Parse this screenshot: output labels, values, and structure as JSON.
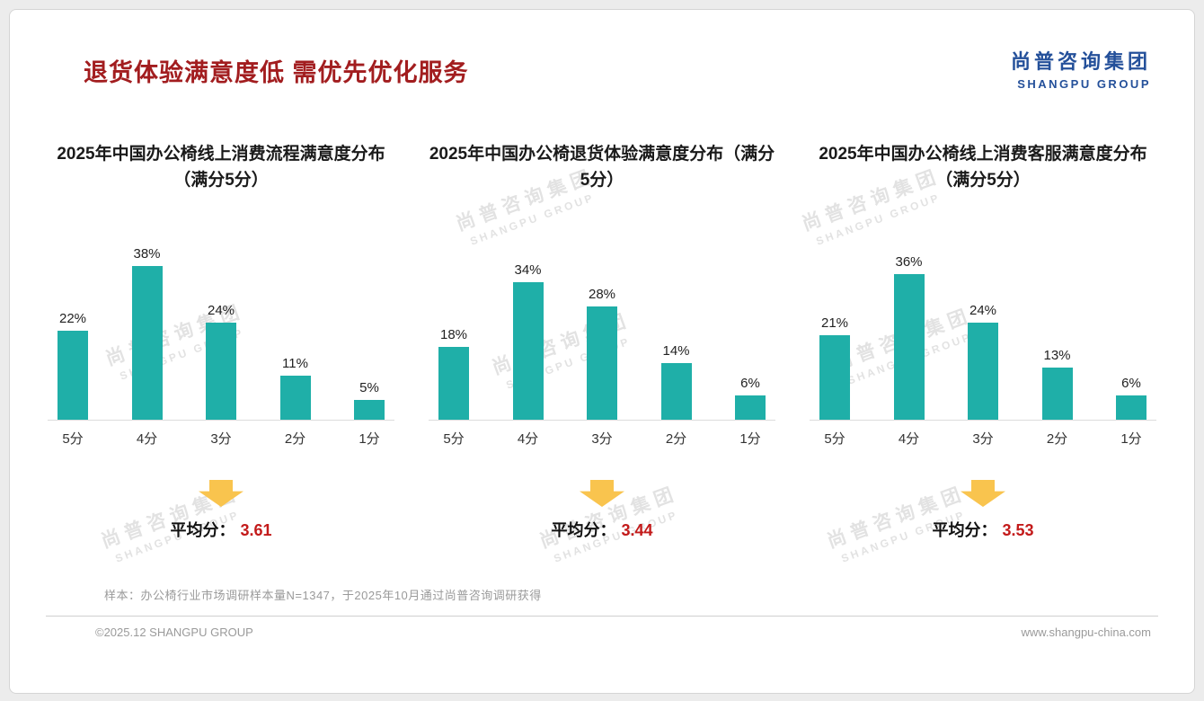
{
  "header": {
    "title": "退货体验满意度低 需优先优化服务",
    "logo_cn": "尚普咨询集团",
    "logo_en": "SHANGPU GROUP"
  },
  "watermark": {
    "cn": "尚普咨询集团",
    "en": "SHANGPU GROUP"
  },
  "chart_data": [
    {
      "type": "bar",
      "title": "2025年中国办公椅线上消费流程满意度分布（满分5分）",
      "categories": [
        "5分",
        "4分",
        "3分",
        "2分",
        "1分"
      ],
      "values": [
        22,
        38,
        24,
        11,
        5
      ],
      "value_suffix": "%",
      "ylim": [
        0,
        40
      ],
      "grid": false,
      "average_label": "平均分：",
      "average_value": "3.61"
    },
    {
      "type": "bar",
      "title": "2025年中国办公椅退货体验满意度分布（满分5分）",
      "categories": [
        "5分",
        "4分",
        "3分",
        "2分",
        "1分"
      ],
      "values": [
        18,
        34,
        28,
        14,
        6
      ],
      "value_suffix": "%",
      "ylim": [
        0,
        40
      ],
      "grid": false,
      "average_label": "平均分：",
      "average_value": "3.44"
    },
    {
      "type": "bar",
      "title": "2025年中国办公椅线上消费客服满意度分布（满分5分）",
      "categories": [
        "5分",
        "4分",
        "3分",
        "2分",
        "1分"
      ],
      "values": [
        21,
        36,
        24,
        13,
        6
      ],
      "value_suffix": "%",
      "ylim": [
        0,
        40
      ],
      "grid": false,
      "average_label": "平均分：",
      "average_value": "3.53"
    }
  ],
  "footer": {
    "note": "样本：办公椅行业市场调研样本量N=1347，于2025年10月通过尚普咨询调研获得",
    "copyright": "©2025.12 SHANGPU GROUP",
    "website": "www.shangpu-china.com"
  },
  "colors": {
    "bar": "#1FAFA8",
    "accent_red": "#C31A1A",
    "title_red": "#A21D1F",
    "logo_blue": "#24509A",
    "arrow_yellow": "#F9C44E"
  }
}
